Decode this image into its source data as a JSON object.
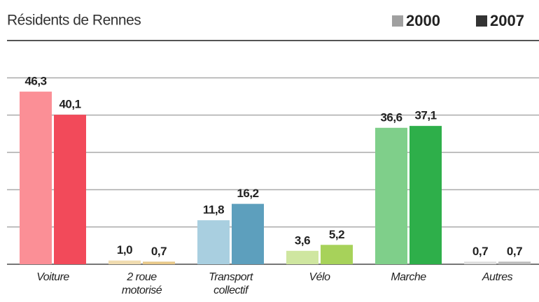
{
  "chart_data": {
    "type": "bar",
    "title": "Résidents de Rennes",
    "categories": [
      "Voiture",
      "2 roue\nmotorisé",
      "Transport\ncollectif",
      "Vélo",
      "Marche",
      "Autres"
    ],
    "series": [
      {
        "name": "2000",
        "color": "#a0a0a0",
        "colors": [
          "#fb8f96",
          "#f0dcb0",
          "#a9cfe0",
          "#cfe6a0",
          "#7fcf8a",
          "#dedede"
        ],
        "values": [
          46.3,
          1.0,
          11.8,
          3.6,
          36.6,
          0.7
        ],
        "value_labels": [
          "46,3",
          "1,0",
          "11,8",
          "3,6",
          "36,6",
          "0,7"
        ]
      },
      {
        "name": "2007",
        "color": "#333333",
        "colors": [
          "#f24a5a",
          "#e8c98a",
          "#5d9fbd",
          "#a7d25a",
          "#2eaf4a",
          "#bdbdbd"
        ],
        "values": [
          40.1,
          0.7,
          16.2,
          5.2,
          37.1,
          0.7
        ],
        "value_labels": [
          "40,1",
          "0,7",
          "16,2",
          "5,2",
          "37,1",
          "0,7"
        ]
      }
    ],
    "ylim": [
      0,
      60
    ],
    "yticks": [
      0,
      10,
      20,
      30,
      40,
      50,
      60
    ],
    "grid": true
  }
}
